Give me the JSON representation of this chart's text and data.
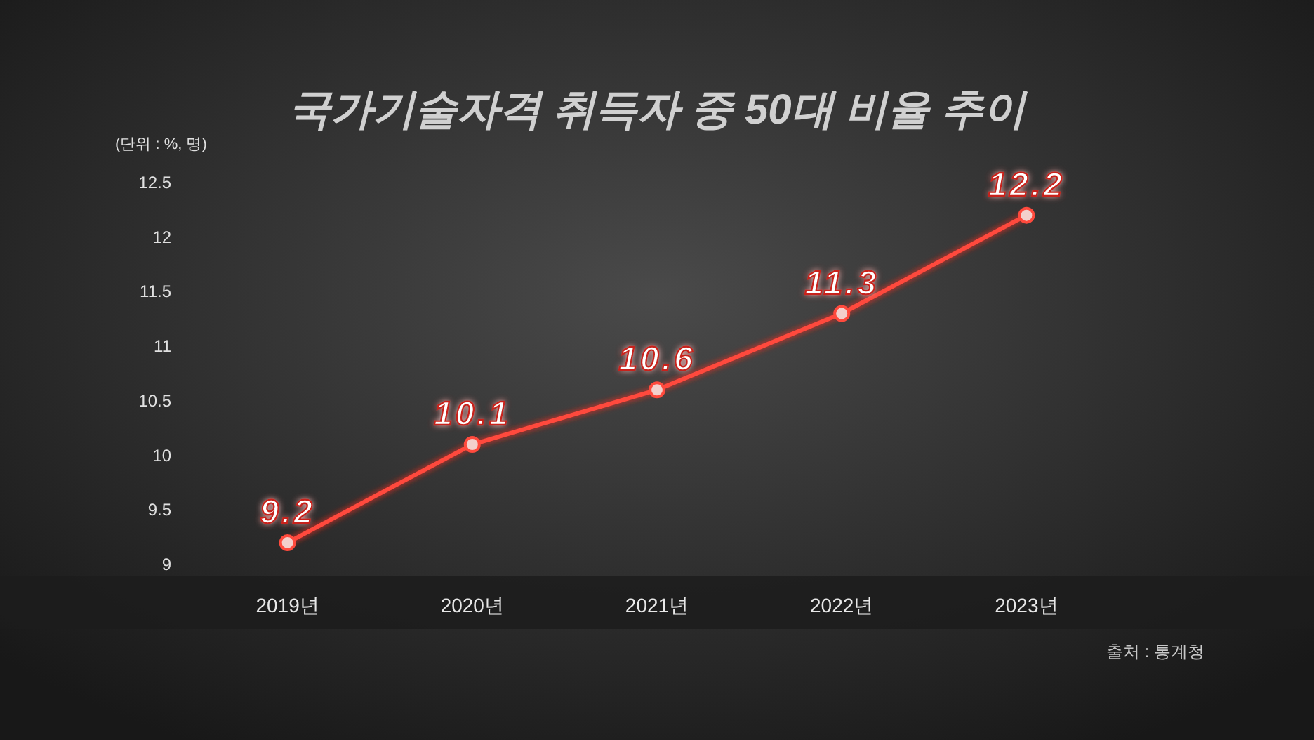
{
  "chart_data": {
    "type": "line",
    "title": "국가기술자격 취득자 중 50대 비율 추이",
    "annotations": [
      "(단위 : %, 명)",
      "출처 : 통계청"
    ],
    "categories": [
      "2019년",
      "2020년",
      "2021년",
      "2022년",
      "2023년"
    ],
    "series": [
      {
        "color": "#ff4a3d",
        "values": [
          9.2,
          10.1,
          10.6,
          11.3,
          12.2
        ]
      }
    ],
    "ylim": [
      9,
      12.5
    ],
    "yticks": [
      9,
      9.5,
      10,
      10.5,
      11,
      11.5,
      12,
      12.5
    ],
    "marker": "circle",
    "line_style": "solid",
    "data_labels": true,
    "grid": false
  }
}
